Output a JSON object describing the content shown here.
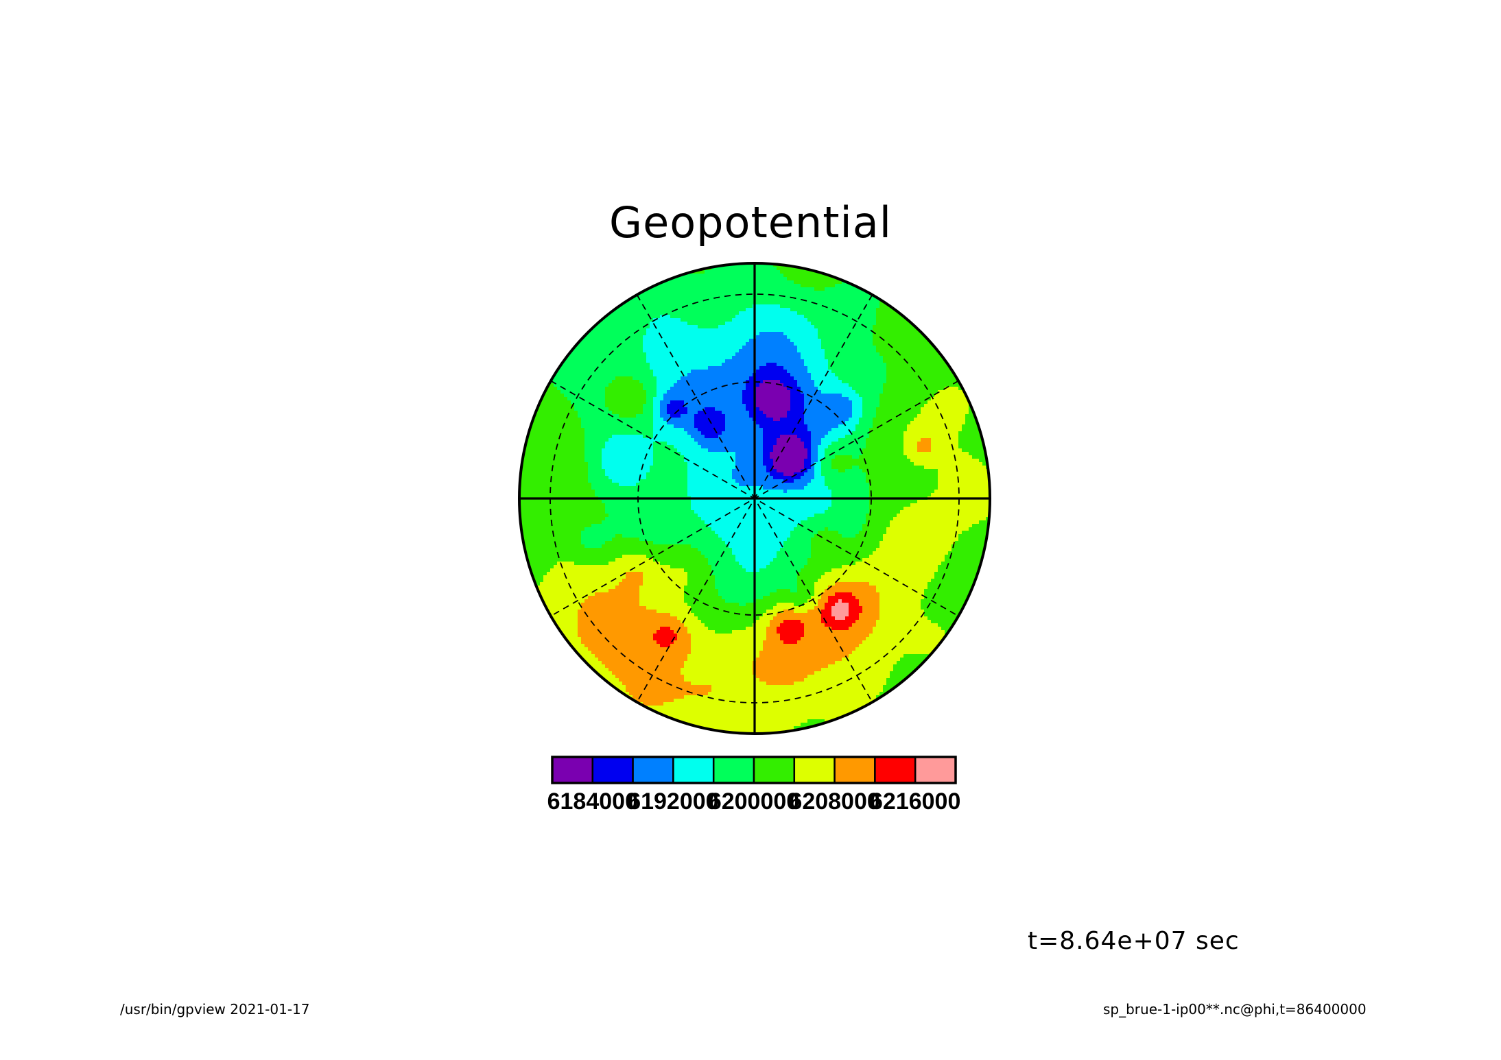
{
  "chart_data": {
    "type": "heatmap",
    "projection": "polar-stereographic",
    "title": "Geopotential",
    "color_levels": [
      6184000,
      6192000,
      6200000,
      6208000,
      6216000
    ],
    "colorbar_labels": [
      "6184000",
      "6192000",
      "6200000",
      "6208000",
      "6216000"
    ],
    "colorbar_colors": [
      "#7a00b0",
      "#0000f0",
      "#0080ff",
      "#00ffee",
      "#00ff5a",
      "#33ee00",
      "#ddff00",
      "#ff9900",
      "#ff0000",
      "#ff9a9a"
    ],
    "grid": true,
    "annotation_time": "t=8.64e+07 sec"
  },
  "footer": {
    "left": "/usr/bin/gpview  2021-01-17",
    "right": "sp_brue-1-ip00**.nc@phi,t=86400000"
  }
}
